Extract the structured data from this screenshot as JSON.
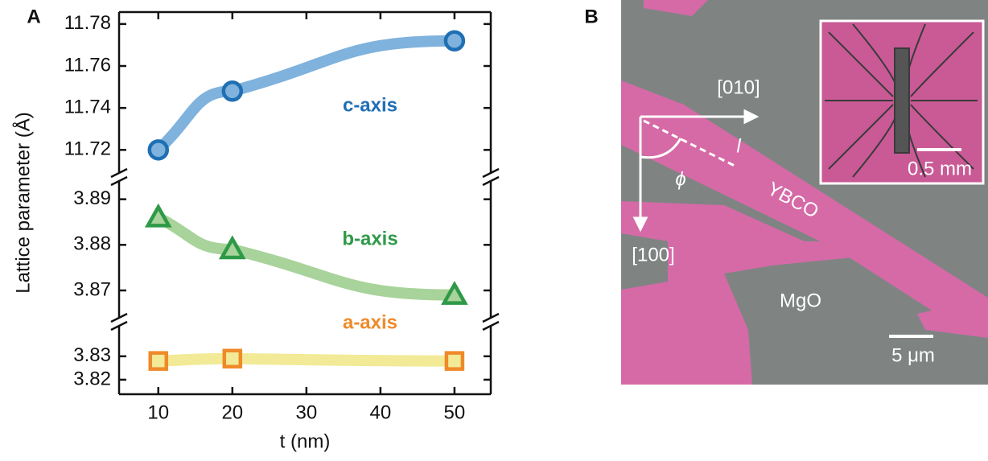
{
  "panel_labels": [
    "A",
    "B"
  ],
  "chart_data": {
    "type": "line",
    "xlabel": "t (nm)",
    "ylabel": "Lattice parameter (Å)",
    "x": [
      10,
      20,
      50
    ],
    "xlim": [
      4.7,
      54.9
    ],
    "xticks": [
      10,
      20,
      30,
      40,
      50
    ],
    "y_segments": [
      {
        "ylim": [
          11.709,
          11.7857
        ],
        "yticks": [
          11.72,
          11.74,
          11.76,
          11.78
        ]
      },
      {
        "ylim": [
          3.864,
          3.894
        ],
        "yticks": [
          3.87,
          3.88,
          3.89
        ]
      },
      {
        "ylim": [
          3.8138,
          3.843
        ],
        "yticks": [
          3.82,
          3.83
        ]
      }
    ],
    "series": [
      {
        "name": "c-axis",
        "segment": 0,
        "marker": "circle",
        "color": "#1f6fb4",
        "line_color": "#7fb2dc",
        "values": [
          11.72,
          11.748,
          11.772
        ]
      },
      {
        "name": "b-axis",
        "segment": 1,
        "marker": "triangle",
        "color": "#2e9a48",
        "line_color": "#a8d39a",
        "values": [
          3.886,
          3.879,
          3.869
        ]
      },
      {
        "name": "a-axis",
        "segment": 2,
        "marker": "square",
        "color": "#ef8a2a",
        "line_color": "#f2ea96",
        "values": [
          3.828,
          3.829,
          3.828
        ]
      }
    ]
  },
  "panel_b": {
    "direction_x": "[010]",
    "direction_y": "[100]",
    "current": "l",
    "angle": "ϕ",
    "film": "YBCO",
    "substrate": "MgO",
    "scale_bar": "5 μm",
    "inset_scale_bar": "0.5 mm"
  }
}
